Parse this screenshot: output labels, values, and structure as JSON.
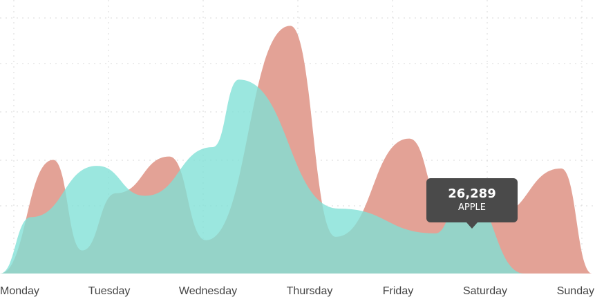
{
  "chart_data": {
    "type": "area",
    "categories": [
      "Monday",
      "Tuesday",
      "Wednesday",
      "Thursday",
      "Friday",
      "Saturday",
      "Sunday"
    ],
    "ylim": [
      0,
      30000
    ],
    "grid": true,
    "smooth": true,
    "series": [
      {
        "name": "",
        "color": "#e3a296",
        "points": [
          [
            0,
            0
          ],
          [
            0.55,
            13300
          ],
          [
            0.85,
            2700
          ],
          [
            1.2,
            9400
          ],
          [
            1.75,
            13700
          ],
          [
            2.13,
            3900
          ],
          [
            3,
            29000
          ],
          [
            3.47,
            4300
          ],
          [
            4.23,
            15800
          ],
          [
            4.6,
            7500
          ],
          [
            5.13,
            6900
          ],
          [
            5.8,
            12300
          ],
          [
            6.12,
            0
          ]
        ]
      },
      {
        "name": "",
        "color": "#7fe0d6",
        "points": [
          [
            0,
            0
          ],
          [
            0.32,
            6600
          ],
          [
            1.0,
            12600
          ],
          [
            1.5,
            9100
          ],
          [
            2.2,
            14800
          ],
          [
            2.47,
            22700
          ],
          [
            3.5,
            7600
          ],
          [
            4.5,
            4700
          ],
          [
            4.8,
            9800
          ],
          [
            5.42,
            0
          ]
        ]
      }
    ]
  },
  "tooltip": {
    "value": "26,289",
    "label": "APPLE"
  }
}
